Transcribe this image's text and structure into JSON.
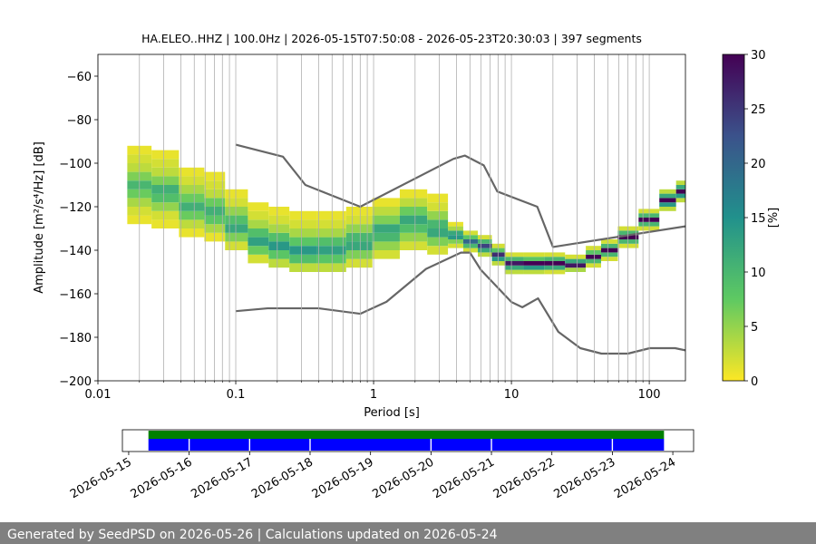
{
  "chart_data": [
    {
      "type": "ppsd",
      "title": "HA.ELEO..HHZ | 100.0Hz | 2026-05-15T07:50:08 - 2026-05-23T20:30:03 | 397 segments",
      "x_label": "Period [s]",
      "y_label": "Amplitude [m²/s⁴/Hz] [dB]",
      "x_scale": "log",
      "xlim": [
        0.01,
        183
      ],
      "xticks": [
        0.01,
        0.1,
        1,
        10,
        100
      ],
      "xminorticks": [
        0.02,
        0.03,
        0.04,
        0.05,
        0.06,
        0.07,
        0.08,
        0.09,
        0.2,
        0.3,
        0.4,
        0.5,
        0.6,
        0.7,
        0.8,
        0.9,
        2,
        3,
        4,
        5,
        6,
        7,
        8,
        9,
        20,
        30,
        40,
        50,
        60,
        70,
        80,
        90
      ],
      "ylim": [
        -200,
        -50
      ],
      "yticks": [
        {
          "value": -200,
          "label": "−200"
        },
        {
          "value": -180,
          "label": "−180"
        },
        {
          "value": -160,
          "label": "−160"
        },
        {
          "value": -140,
          "label": "−140"
        },
        {
          "value": -120,
          "label": "−120"
        },
        {
          "value": -100,
          "label": "−100"
        },
        {
          "value": -80,
          "label": "−80"
        },
        {
          "value": -60,
          "label": "−60"
        }
      ],
      "grid": "x",
      "colormap": "viridis_r",
      "clim": [
        0,
        30
      ],
      "colorbar_ticks": [
        0,
        5,
        10,
        15,
        20,
        25,
        30
      ],
      "colorbar_label": "[%]",
      "density": [
        {
          "period": 0.02,
          "amplitudes": [
            -126,
            -122,
            -118,
            -114,
            -110,
            -106,
            -102,
            -98,
            -94
          ],
          "values": [
            1,
            2,
            4,
            7,
            10,
            6,
            3,
            2,
            1
          ]
        },
        {
          "period": 0.03,
          "amplitudes": [
            -128,
            -124,
            -120,
            -116,
            -112,
            -108,
            -104,
            -100,
            -96
          ],
          "values": [
            1,
            2,
            5,
            9,
            11,
            6,
            3,
            2,
            1
          ]
        },
        {
          "period": 0.05,
          "amplitudes": [
            -132,
            -128,
            -124,
            -120,
            -116,
            -112,
            -108,
            -104
          ],
          "values": [
            1,
            3,
            7,
            11,
            7,
            4,
            2,
            1
          ]
        },
        {
          "period": 0.07,
          "amplitudes": [
            -134,
            -130,
            -126,
            -122,
            -118,
            -114,
            -110,
            -106
          ],
          "values": [
            1,
            4,
            8,
            11,
            7,
            3,
            2,
            1
          ]
        },
        {
          "period": 0.1,
          "amplitudes": [
            -138,
            -134,
            -130,
            -126,
            -122,
            -118,
            -114
          ],
          "values": [
            2,
            6,
            12,
            9,
            5,
            2,
            1
          ]
        },
        {
          "period": 0.15,
          "amplitudes": [
            -144,
            -140,
            -136,
            -132,
            -128,
            -124,
            -120
          ],
          "values": [
            2,
            7,
            13,
            9,
            4,
            2,
            1
          ]
        },
        {
          "period": 0.2,
          "amplitudes": [
            -146,
            -142,
            -138,
            -134,
            -130,
            -126,
            -122
          ],
          "values": [
            3,
            8,
            14,
            9,
            4,
            2,
            1
          ]
        },
        {
          "period": 0.3,
          "amplitudes": [
            -148,
            -144,
            -140,
            -136,
            -132,
            -128,
            -124
          ],
          "values": [
            3,
            9,
            14,
            8,
            4,
            2,
            1
          ]
        },
        {
          "period": 0.5,
          "amplitudes": [
            -148,
            -144,
            -140,
            -136,
            -132,
            -128,
            -124
          ],
          "values": [
            3,
            8,
            13,
            9,
            4,
            2,
            1
          ]
        },
        {
          "period": 0.8,
          "amplitudes": [
            -146,
            -142,
            -138,
            -134,
            -130,
            -126,
            -122
          ],
          "values": [
            2,
            6,
            12,
            10,
            5,
            2,
            1
          ]
        },
        {
          "period": 1.2,
          "amplitudes": [
            -142,
            -138,
            -134,
            -130,
            -126,
            -122,
            -118
          ],
          "values": [
            2,
            5,
            10,
            12,
            6,
            3,
            1
          ]
        },
        {
          "period": 2,
          "amplitudes": [
            -138,
            -134,
            -130,
            -126,
            -122,
            -118,
            -114
          ],
          "values": [
            2,
            5,
            9,
            12,
            7,
            3,
            1
          ]
        },
        {
          "period": 3,
          "amplitudes": [
            -140,
            -136,
            -132,
            -128,
            -124,
            -120,
            -116
          ],
          "values": [
            2,
            6,
            12,
            10,
            5,
            2,
            1
          ]
        },
        {
          "period": 4,
          "amplitudes": [
            -138,
            -136,
            -134,
            -132,
            -130,
            -128
          ],
          "values": [
            2,
            6,
            14,
            12,
            4,
            1
          ]
        },
        {
          "period": 5,
          "amplitudes": [
            -140,
            -138,
            -136,
            -134,
            -132
          ],
          "values": [
            2,
            10,
            20,
            8,
            2
          ]
        },
        {
          "period": 6.5,
          "amplitudes": [
            -142,
            -140,
            -138,
            -136,
            -134
          ],
          "values": [
            3,
            12,
            24,
            10,
            2
          ]
        },
        {
          "period": 8,
          "amplitudes": [
            -146,
            -144,
            -142,
            -140,
            -138
          ],
          "values": [
            3,
            14,
            26,
            8,
            2
          ]
        },
        {
          "period": 10,
          "amplitudes": [
            -150,
            -148,
            -146,
            -144,
            -142
          ],
          "values": [
            3,
            12,
            28,
            10,
            2
          ]
        },
        {
          "period": 15,
          "amplitudes": [
            -150,
            -148,
            -146,
            -144,
            -142
          ],
          "values": [
            3,
            14,
            30,
            8,
            2
          ]
        },
        {
          "period": 20,
          "amplitudes": [
            -150,
            -148,
            -146,
            -144,
            -142
          ],
          "values": [
            2,
            12,
            30,
            10,
            2
          ]
        },
        {
          "period": 30,
          "amplitudes": [
            -149,
            -147,
            -145,
            -143
          ],
          "values": [
            4,
            28,
            12,
            2
          ]
        },
        {
          "period": 40,
          "amplitudes": [
            -147,
            -145,
            -143,
            -141,
            -139
          ],
          "values": [
            2,
            10,
            30,
            8,
            2
          ]
        },
        {
          "period": 50,
          "amplitudes": [
            -144,
            -142,
            -140,
            -138,
            -136
          ],
          "values": [
            2,
            10,
            30,
            10,
            2
          ]
        },
        {
          "period": 70,
          "amplitudes": [
            -138,
            -136,
            -134,
            -132,
            -130
          ],
          "values": [
            2,
            10,
            30,
            10,
            2
          ]
        },
        {
          "period": 100,
          "amplitudes": [
            -130,
            -128,
            -126,
            -124,
            -122
          ],
          "values": [
            2,
            10,
            30,
            10,
            2
          ]
        },
        {
          "period": 140,
          "amplitudes": [
            -121,
            -119,
            -117,
            -115,
            -113
          ],
          "values": [
            3,
            14,
            30,
            12,
            3
          ]
        },
        {
          "period": 175,
          "amplitudes": [
            -117,
            -115,
            -113,
            -111,
            -109
          ],
          "values": [
            3,
            14,
            30,
            12,
            3
          ]
        }
      ],
      "series": [
        {
          "color": "#666666",
          "x": [
            0.1,
            0.22,
            0.32,
            0.8,
            3.8,
            4.6,
            6.3,
            7.9,
            15.4,
            20,
            183
          ],
          "values": [
            -91.5,
            -97,
            -110,
            -120,
            -98,
            -96.5,
            -101,
            -113,
            -120,
            -138.5,
            -129
          ]
        },
        {
          "color": "#666666",
          "x": [
            0.1,
            0.17,
            0.4,
            0.8,
            1.24,
            2.4,
            4.3,
            5,
            6,
            10,
            12,
            15.6,
            21.9,
            31.6,
            45,
            70,
            101,
            154,
            183
          ],
          "values": [
            -168,
            -166.7,
            -166.7,
            -169.2,
            -163.7,
            -148.6,
            -141.1,
            -141.1,
            -149,
            -163.8,
            -166.2,
            -162.1,
            -177.5,
            -185,
            -187.5,
            -187.5,
            -185,
            -185,
            -186
          ]
        }
      ]
    },
    {
      "type": "timeline",
      "xlim": [
        "2026-05-14T21:30:00",
        "2026-05-24T08:15:00"
      ],
      "xticks": [
        "2026-05-15",
        "2026-05-16",
        "2026-05-17",
        "2026-05-18",
        "2026-05-19",
        "2026-05-20",
        "2026-05-21",
        "2026-05-22",
        "2026-05-23",
        "2026-05-24"
      ],
      "series": [
        {
          "color": "#008000",
          "intervals": [
            [
              "2026-05-15T07:50:08",
              "2026-05-23T20:30:03"
            ]
          ]
        },
        {
          "color": "#0000ff",
          "intervals": [
            [
              "2026-05-15T07:50:08",
              "2026-05-15T23:45:00"
            ],
            [
              "2026-05-16T00:15:00",
              "2026-05-16T23:45:00"
            ],
            [
              "2026-05-17T00:15:00",
              "2026-05-17T23:45:00"
            ],
            [
              "2026-05-18T00:15:00",
              "2026-05-19T23:45:00"
            ],
            [
              "2026-05-20T00:15:00",
              "2026-05-20T23:45:00"
            ],
            [
              "2026-05-21T00:15:00",
              "2026-05-22T23:45:00"
            ],
            [
              "2026-05-23T00:15:00",
              "2026-05-23T20:30:03"
            ]
          ]
        }
      ]
    }
  ],
  "footer": {
    "text": "Generated by SeedPSD on 2026-05-26 | Calculations updated on 2026-05-24"
  }
}
